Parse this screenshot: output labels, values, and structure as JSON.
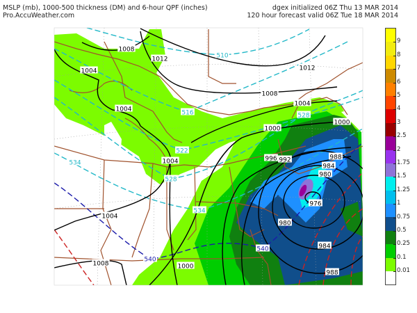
{
  "header": {
    "title": "MSLP (mb), 1000-500 thickness (DM) and 6-hour QPF (inches)",
    "site": "Pro.AccuWeather.com",
    "init": "dgex initialized 06Z Thu 13 MAR 2014",
    "valid": "120 hour forecast valid 06Z Tue 18 MAR 2014"
  },
  "legend": {
    "colors": [
      "#ffff00",
      "#f2ec10",
      "#ffd700",
      "#cd8a00",
      "#ff8000",
      "#ff4500",
      "#dd0000",
      "#990000",
      "#990099",
      "#9933ee",
      "#8f73d8",
      "#00eeee",
      "#00bfee",
      "#1e90ff",
      "#104e8b",
      "#108010",
      "#00cd00",
      "#7cfc00",
      "#ffffff"
    ],
    "labels": [
      "9",
      "8",
      "7",
      "6",
      "5",
      "4",
      "3",
      "2.5",
      "2",
      "1.75",
      "1.5",
      "1.25",
      "1",
      "0.75",
      "0.5",
      "0.25",
      "0.1",
      "0.01"
    ]
  },
  "map": {
    "isobar_labels": [
      "1008",
      "1012",
      "1012",
      "1004",
      "1004",
      "1004",
      "1004",
      "1008",
      "1004",
      "1000",
      "1000",
      "996",
      "992",
      "988",
      "984",
      "980",
      "976",
      "980",
      "984",
      "988",
      "1008",
      "1000"
    ],
    "thickness_labels": [
      "510",
      "516",
      "522",
      "528",
      "528",
      "534",
      "534",
      "540",
      "540"
    ],
    "colors": {
      "isobar": "#000000",
      "thickness_cold": "#22b8c8",
      "thickness_540": "#1a1aaa",
      "thickness_warm": "#cc2222",
      "borders": "#a0522d",
      "grid": "#999999"
    }
  }
}
